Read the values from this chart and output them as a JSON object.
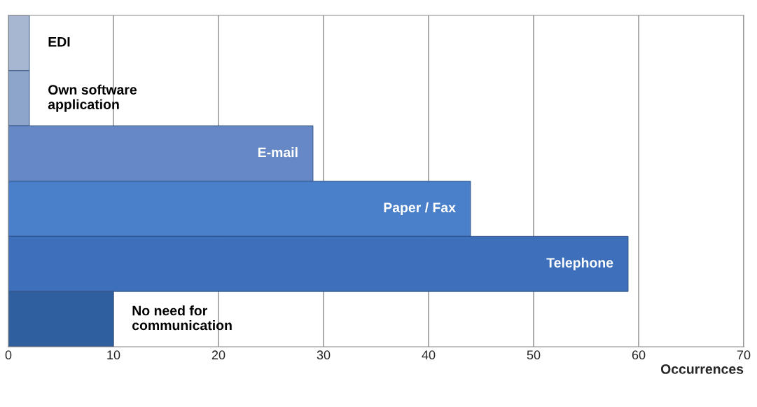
{
  "chart_data": {
    "type": "bar",
    "orientation": "horizontal",
    "xlabel": "Occurrences",
    "categories": [
      "EDI",
      "Own software\napplication",
      "E-mail",
      "Paper / Fax",
      "Telephone",
      "No need for\ncommunication"
    ],
    "values": [
      2,
      2,
      29,
      44,
      59,
      10
    ],
    "colors": [
      "#a7b6d1",
      "#8da4cb",
      "#6688c6",
      "#4a7fca",
      "#3d6fba",
      "#2f5f9e"
    ],
    "xlim": [
      0,
      70
    ],
    "xticks": [
      0,
      10,
      20,
      30,
      40,
      50,
      60,
      70
    ],
    "grid": "x",
    "tick_labels": "x"
  }
}
